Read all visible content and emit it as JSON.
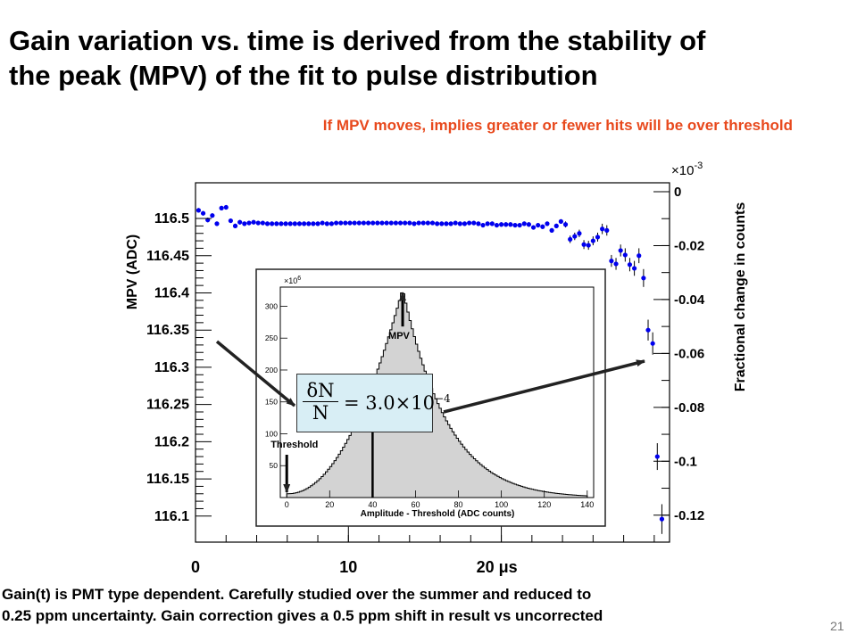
{
  "slide": {
    "title_line1": "Gain variation vs. time is derived from the stability of",
    "title_line2": "the peak (MPV) of the fit to pulse distribution",
    "subtitle": "If MPV moves, implies greater or fewer hits will be over threshold",
    "footer_line1": "Gain(t) is PMT type dependent.  Carefully studied over the summer and reduced to",
    "footer_line2": "0.25 ppm uncertainty.  Gain correction gives a 0.5 ppm shift in result vs uncorrected",
    "page_number": "21",
    "colors": {
      "title": "#000000",
      "subtitle": "#e8491d",
      "points": "#0000ee",
      "histogram_fill": "#d3d3d3",
      "formula_box": "#d8eef5"
    }
  },
  "chart_data": [
    {
      "type": "scatter",
      "ylabel": "MPV (ADC)",
      "y2label": "Fractional change in counts",
      "y2_multiplier": "×10",
      "y2_exponent": "-3",
      "xlim": [
        0,
        31
      ],
      "ylim": [
        116.065,
        116.548
      ],
      "y2lim": [
        -0.13,
        0.0033
      ],
      "x_ticks": [
        "0",
        "10",
        "20 μs"
      ],
      "y_ticks": [
        "116.1",
        "116.15",
        "116.2",
        "116.25",
        "116.3",
        "116.35",
        "116.4",
        "116.45",
        "116.5"
      ],
      "y2_ticks": [
        "0",
        "-0.02",
        "-0.04",
        "-0.06",
        "-0.08",
        "-0.1",
        "-0.12"
      ],
      "series": [
        {
          "x": [
            0.2,
            0.5,
            0.8,
            1.1,
            1.4,
            1.7,
            2.0,
            2.3,
            2.6,
            2.9,
            3.2,
            3.5,
            3.8,
            4.1,
            4.4,
            4.7,
            5.0,
            5.3,
            5.6,
            5.9,
            6.2,
            6.5,
            6.8,
            7.1,
            7.4,
            7.7,
            8.0,
            8.3,
            8.6,
            8.9,
            9.2,
            9.5,
            9.8,
            10.1,
            10.4,
            10.7,
            11.0,
            11.3,
            11.6,
            11.9,
            12.2,
            12.5,
            12.8,
            13.1,
            13.4,
            13.7,
            14.0,
            14.3,
            14.6,
            14.9,
            15.2,
            15.5,
            15.8,
            16.1,
            16.4,
            16.7,
            17.0,
            17.3,
            17.6,
            17.9,
            18.2,
            18.5,
            18.8,
            19.1,
            19.4,
            19.7,
            20.0,
            20.3,
            20.6,
            20.9,
            21.2,
            21.5,
            21.8,
            22.1,
            22.4,
            22.7,
            23.0,
            23.3,
            23.6,
            23.9,
            24.2,
            24.5,
            24.8,
            25.1,
            25.4,
            25.7,
            26.0,
            26.3,
            26.6,
            26.9,
            27.2,
            27.5,
            27.8,
            28.1,
            28.4,
            28.7,
            29.0,
            29.3,
            29.6,
            29.9,
            30.2,
            30.5
          ],
          "y": [
            116.511,
            116.507,
            116.498,
            116.504,
            116.493,
            116.514,
            116.515,
            116.497,
            116.49,
            116.495,
            116.493,
            116.494,
            116.495,
            116.494,
            116.494,
            116.493,
            116.493,
            116.493,
            116.493,
            116.493,
            116.493,
            116.493,
            116.493,
            116.493,
            116.493,
            116.493,
            116.493,
            116.494,
            116.493,
            116.493,
            116.494,
            116.494,
            116.494,
            116.494,
            116.494,
            116.494,
            116.494,
            116.494,
            116.494,
            116.494,
            116.494,
            116.494,
            116.494,
            116.494,
            116.494,
            116.494,
            116.494,
            116.493,
            116.494,
            116.494,
            116.494,
            116.494,
            116.493,
            116.493,
            116.493,
            116.493,
            116.494,
            116.493,
            116.493,
            116.494,
            116.494,
            116.493,
            116.491,
            116.493,
            116.493,
            116.491,
            116.492,
            116.492,
            116.492,
            116.491,
            116.491,
            116.493,
            116.492,
            116.488,
            116.491,
            116.489,
            116.493,
            116.484,
            116.49,
            116.496,
            116.492,
            116.472,
            116.476,
            116.48,
            116.465,
            116.464,
            116.47,
            116.475,
            116.486,
            116.484,
            116.443,
            116.439,
            116.457,
            116.451,
            116.438,
            116.433,
            116.45,
            116.42,
            116.35,
            116.332,
            116.18,
            116.096
          ],
          "err": [
            0.003,
            0.003,
            0.003,
            0.003,
            0.003,
            0.003,
            0.003,
            0.003,
            0.003,
            0.003,
            0.003,
            0.003,
            0.003,
            0.003,
            0.003,
            0.003,
            0.003,
            0.003,
            0.003,
            0.003,
            0.003,
            0.003,
            0.003,
            0.003,
            0.003,
            0.003,
            0.003,
            0.003,
            0.003,
            0.003,
            0.003,
            0.003,
            0.003,
            0.003,
            0.003,
            0.003,
            0.003,
            0.003,
            0.003,
            0.003,
            0.003,
            0.003,
            0.003,
            0.003,
            0.003,
            0.003,
            0.003,
            0.003,
            0.003,
            0.003,
            0.003,
            0.003,
            0.003,
            0.003,
            0.003,
            0.003,
            0.003,
            0.003,
            0.003,
            0.003,
            0.003,
            0.003,
            0.003,
            0.003,
            0.003,
            0.003,
            0.003,
            0.003,
            0.003,
            0.003,
            0.003,
            0.003,
            0.003,
            0.003,
            0.003,
            0.003,
            0.003,
            0.003,
            0.003,
            0.003,
            0.004,
            0.005,
            0.005,
            0.005,
            0.006,
            0.006,
            0.006,
            0.006,
            0.007,
            0.007,
            0.008,
            0.008,
            0.008,
            0.009,
            0.009,
            0.01,
            0.01,
            0.012,
            0.014,
            0.015,
            0.018,
            0.02
          ]
        }
      ]
    },
    {
      "type": "bar",
      "exponent_label": "×10",
      "exponent_power": "6",
      "xlabel": "Amplitude - Threshold (ADC counts)",
      "xlim": [
        -3,
        143
      ],
      "ylim": [
        0,
        330
      ],
      "x_ticks": [
        "0",
        "20",
        "40",
        "60",
        "80",
        "100",
        "120",
        "140"
      ],
      "y_ticks": [
        "50",
        "100",
        "150",
        "200",
        "250",
        "300"
      ],
      "annotations": [
        "MPV",
        "Threshold"
      ],
      "mpv": 54,
      "threshold": 0,
      "cut_line": 40,
      "equation": {
        "numerator": "δN",
        "denominator": "N",
        "rhs": "= 3.0×10",
        "power": "−4"
      }
    }
  ]
}
